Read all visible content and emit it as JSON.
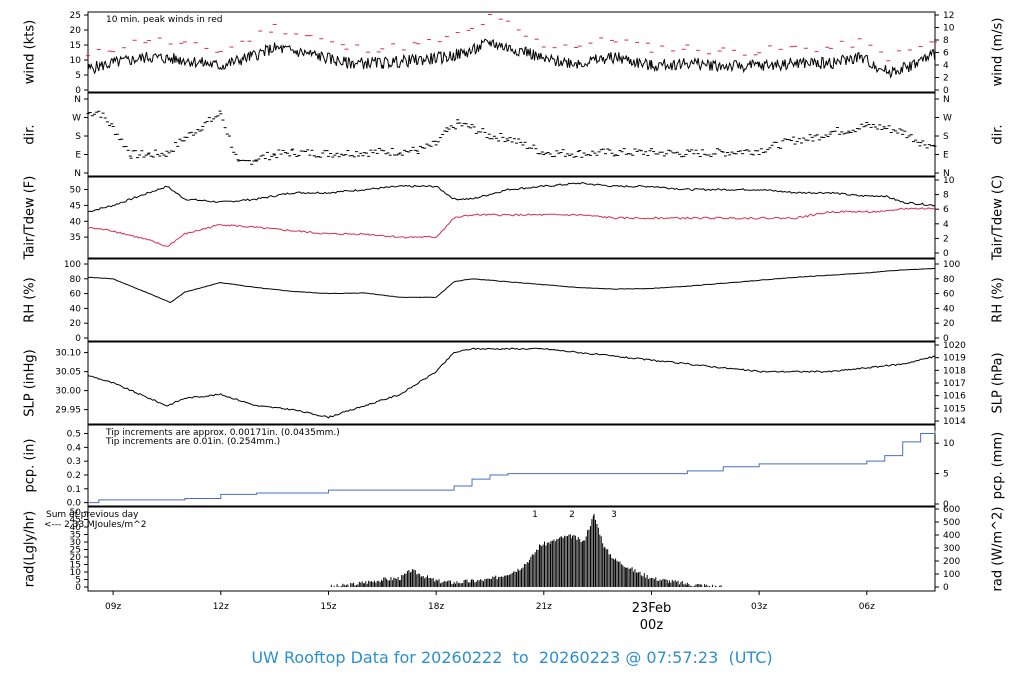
{
  "chart_data": [
    {
      "panel": "wind",
      "type": "line",
      "ylabel": "wind (kts)",
      "ylabel_right": "wind (m/s)",
      "ylim": [
        0,
        25
      ],
      "yticks": [
        0,
        5,
        10,
        15,
        20,
        25
      ],
      "right_ticks": [
        0,
        2,
        4,
        6,
        8,
        10,
        12
      ],
      "annotation": "10 min. peak winds in red",
      "series": [
        {
          "color": "#000000",
          "x": [
            8.3,
            9,
            10,
            11,
            12,
            12.8,
            13.5,
            14.5,
            15.5,
            16.5,
            17.5,
            18.3,
            19,
            19.5,
            20,
            20.5,
            21,
            22,
            23,
            24,
            25,
            26,
            27,
            28,
            29,
            29.8,
            30.6,
            31.2,
            31.9
          ],
          "y": [
            7,
            9,
            11,
            10,
            8,
            11,
            14,
            12,
            9,
            9,
            10,
            11,
            13,
            16,
            14,
            13,
            10,
            9,
            11,
            8,
            9,
            8,
            8,
            9,
            9,
            11,
            6,
            8,
            12
          ]
        },
        {
          "color": "#d6304f",
          "style": "dashes",
          "x": [
            8.3,
            9,
            10,
            11,
            12,
            12.8,
            13.5,
            14.5,
            15.5,
            16.5,
            17.5,
            18.3,
            19,
            19.5,
            20,
            20.5,
            21,
            22,
            23,
            24,
            25,
            26,
            27,
            28,
            29,
            29.8,
            30.6,
            31.2,
            31.9
          ],
          "y": [
            11,
            14,
            17,
            15,
            13,
            17,
            21,
            18,
            14,
            14,
            15,
            17,
            20,
            24,
            22,
            18,
            15,
            15,
            17,
            14,
            14,
            13,
            13,
            14,
            14,
            16,
            11,
            13,
            16
          ]
        }
      ]
    },
    {
      "panel": "dir",
      "type": "scatter",
      "ylabel": "dir.",
      "ylabel_right": "dir.",
      "ylim": [
        0,
        360
      ],
      "ytick_labels": [
        "N",
        "E",
        "S",
        "W",
        "N"
      ],
      "series": [
        {
          "color": "#000000",
          "x": [
            8.3,
            8.6,
            9,
            9.5,
            10,
            10.5,
            11,
            11.5,
            12,
            12.5,
            13,
            13.5,
            14,
            15,
            16,
            17,
            17.5,
            18,
            18.3,
            18.6,
            19,
            19.5,
            20,
            21,
            22,
            23,
            24,
            25,
            26,
            27,
            28,
            28.5,
            29,
            29.5,
            30,
            30.5,
            31,
            31.5,
            31.9
          ],
          "y": [
            290,
            300,
            220,
            90,
            90,
            95,
            170,
            230,
            290,
            40,
            70,
            90,
            100,
            95,
            100,
            105,
            110,
            140,
            200,
            240,
            220,
            180,
            170,
            100,
            95,
            100,
            100,
            95,
            100,
            110,
            160,
            170,
            200,
            210,
            230,
            220,
            200,
            150,
            130
          ]
        }
      ]
    },
    {
      "panel": "temp",
      "type": "line",
      "ylabel": "Tair/Tdew (F)",
      "ylabel_right": "Tair/Tdew (C)",
      "ylim": [
        30,
        53
      ],
      "yticks": [
        35,
        40,
        45,
        50
      ],
      "right_ticks": [
        0,
        2,
        4,
        6,
        8,
        10
      ],
      "series": [
        {
          "name": "",
          "color": "#000000",
          "x": [
            8.3,
            9,
            10,
            10.5,
            11,
            12,
            13,
            14,
            15,
            16,
            17,
            18,
            18.5,
            19,
            20,
            21,
            22,
            23,
            24,
            25,
            26,
            27,
            28,
            29,
            29.8,
            30.5,
            31,
            31.9
          ],
          "y": [
            43,
            45,
            49,
            51,
            47,
            46,
            47,
            49,
            49,
            50,
            51,
            51,
            47,
            47,
            50,
            51,
            52,
            51,
            51,
            50,
            50,
            50,
            49,
            49,
            48,
            48,
            46,
            45
          ]
        },
        {
          "name": "",
          "color": "#d6304f",
          "x": [
            8.3,
            9,
            10,
            10.5,
            11,
            12,
            13,
            14,
            15,
            16,
            17,
            18,
            18.5,
            19,
            20,
            21,
            22,
            23,
            24,
            25,
            26,
            27,
            28,
            29,
            29.8,
            30.5,
            31,
            31.9
          ],
          "y": [
            38,
            37,
            34,
            32,
            36,
            39,
            38,
            37,
            36,
            36,
            35,
            35,
            41,
            42,
            42,
            42,
            42,
            41,
            41,
            41,
            41,
            41,
            41,
            43,
            43,
            43,
            44,
            44
          ]
        }
      ]
    },
    {
      "panel": "rh",
      "type": "line",
      "ylabel": "RH (%)",
      "ylabel_right": "RH (%)",
      "ylim": [
        0,
        100
      ],
      "yticks": [
        0,
        20,
        40,
        60,
        80,
        100
      ],
      "right_ticks": [
        0,
        20,
        40,
        60,
        80,
        100
      ],
      "series": [
        {
          "color": "#000000",
          "x": [
            8.3,
            9,
            10,
            10.6,
            11,
            12,
            13,
            14,
            15,
            16,
            17,
            18,
            18.5,
            19,
            20,
            21,
            22,
            23,
            24,
            25,
            26,
            27,
            28,
            29,
            30,
            31,
            31.9
          ],
          "y": [
            82,
            80,
            60,
            48,
            62,
            75,
            68,
            63,
            60,
            61,
            55,
            55,
            76,
            80,
            76,
            72,
            68,
            66,
            67,
            70,
            74,
            78,
            82,
            85,
            88,
            92,
            94
          ]
        }
      ]
    },
    {
      "panel": "slp",
      "type": "line",
      "ylabel": "SLP (inHg)",
      "ylabel_right": "SLP (hPa)",
      "ylim": [
        29.92,
        30.12
      ],
      "yticks": [
        29.95,
        30.0,
        30.05,
        30.1
      ],
      "ytick_labels": [
        "29.95",
        "30.00",
        "30.05",
        "30.10"
      ],
      "right_ticks": [
        1014,
        1015,
        1016,
        1017,
        1018,
        1019,
        1020
      ],
      "series": [
        {
          "color": "#000000",
          "x": [
            8.3,
            9,
            10,
            10.5,
            11,
            12,
            13,
            14,
            15,
            16,
            17,
            18,
            18.5,
            19,
            20,
            21,
            22,
            23,
            24,
            25,
            26,
            27,
            28,
            29,
            30,
            31,
            31.9
          ],
          "y": [
            30.04,
            30.02,
            29.98,
            29.96,
            29.98,
            29.99,
            29.96,
            29.95,
            29.93,
            29.96,
            29.99,
            30.05,
            30.1,
            30.11,
            30.11,
            30.11,
            30.1,
            30.09,
            30.08,
            30.07,
            30.06,
            30.05,
            30.05,
            30.05,
            30.06,
            30.07,
            30.09
          ]
        }
      ]
    },
    {
      "panel": "pcp",
      "type": "line",
      "ylabel": "pcp. (in)",
      "ylabel_right": "pcp. (mm)",
      "ylim": [
        -0.01,
        0.54
      ],
      "yticks": [
        0.0,
        0.1,
        0.2,
        0.3,
        0.4,
        0.5
      ],
      "ytick_labels": [
        "0.0",
        "0.1",
        "0.2",
        "0.3",
        "0.4",
        "0.5"
      ],
      "right_ticks": [
        0,
        5,
        10
      ],
      "annotations": [
        {
          "text": "Tip increments are approx. 0.00171in. (0.0435mm.)",
          "color": "#d6304f"
        },
        {
          "text": "Tip increments are 0.01in. (0.254mm.)",
          "color": "#2b8fd0"
        }
      ],
      "series": [
        {
          "color": "#4a6fc2",
          "x": [
            8.3,
            8.6,
            10,
            11,
            12,
            13,
            15,
            17,
            18,
            18.5,
            19,
            19.5,
            20,
            21,
            22,
            24,
            25,
            26,
            27,
            28,
            29,
            30,
            30.5,
            31,
            31.5,
            31.9
          ],
          "y": [
            0.0,
            0.02,
            0.02,
            0.03,
            0.06,
            0.07,
            0.09,
            0.09,
            0.09,
            0.12,
            0.17,
            0.2,
            0.21,
            0.21,
            0.21,
            0.21,
            0.23,
            0.26,
            0.28,
            0.28,
            0.28,
            0.3,
            0.34,
            0.44,
            0.5,
            0.52
          ]
        }
      ]
    },
    {
      "panel": "rad",
      "type": "bar",
      "ylabel": "rad(Lgly/hr)",
      "ylabel_right": "rad (W/m^2)",
      "ylim": [
        0,
        52
      ],
      "yticks": [
        0,
        5,
        10,
        15,
        20,
        25,
        30,
        35,
        40,
        45,
        50
      ],
      "right_ticks": [
        0,
        100,
        200,
        300,
        400,
        500,
        600
      ],
      "annotation_lines": [
        "Sum of previous day",
        "<--- 2.33 MJoules/m^2"
      ],
      "markers": [
        "1",
        "2",
        "3"
      ],
      "series": [
        {
          "color": "#000000",
          "x": [
            15,
            15.5,
            16,
            16.5,
            17,
            17.3,
            17.6,
            18,
            18.5,
            19,
            19.5,
            20,
            20.3,
            20.6,
            20.9,
            21.2,
            21.5,
            21.8,
            22.1,
            22.4,
            22.7,
            23,
            23.3,
            23.6,
            24,
            24.5,
            25,
            25.5,
            26
          ],
          "y": [
            0,
            1,
            3,
            5,
            6,
            11,
            8,
            4,
            3,
            4,
            5,
            9,
            12,
            18,
            28,
            30,
            33,
            34,
            30,
            48,
            26,
            18,
            14,
            10,
            6,
            4,
            2,
            1,
            0
          ]
        }
      ]
    }
  ],
  "x_axis": {
    "ticks": [
      {
        "x": 9,
        "label": "09z"
      },
      {
        "x": 12,
        "label": "12z"
      },
      {
        "x": 15,
        "label": "15z"
      },
      {
        "x": 18,
        "label": "18z"
      },
      {
        "x": 21,
        "label": "21z"
      },
      {
        "x": 27,
        "label": "03z"
      },
      {
        "x": 30,
        "label": "06z"
      }
    ],
    "date_label": "23Feb",
    "date_sub": "00z"
  },
  "footer": {
    "title": "UW Rooftop Data for 20260222  to  20260223 @ 07:57:23  (UTC)"
  }
}
